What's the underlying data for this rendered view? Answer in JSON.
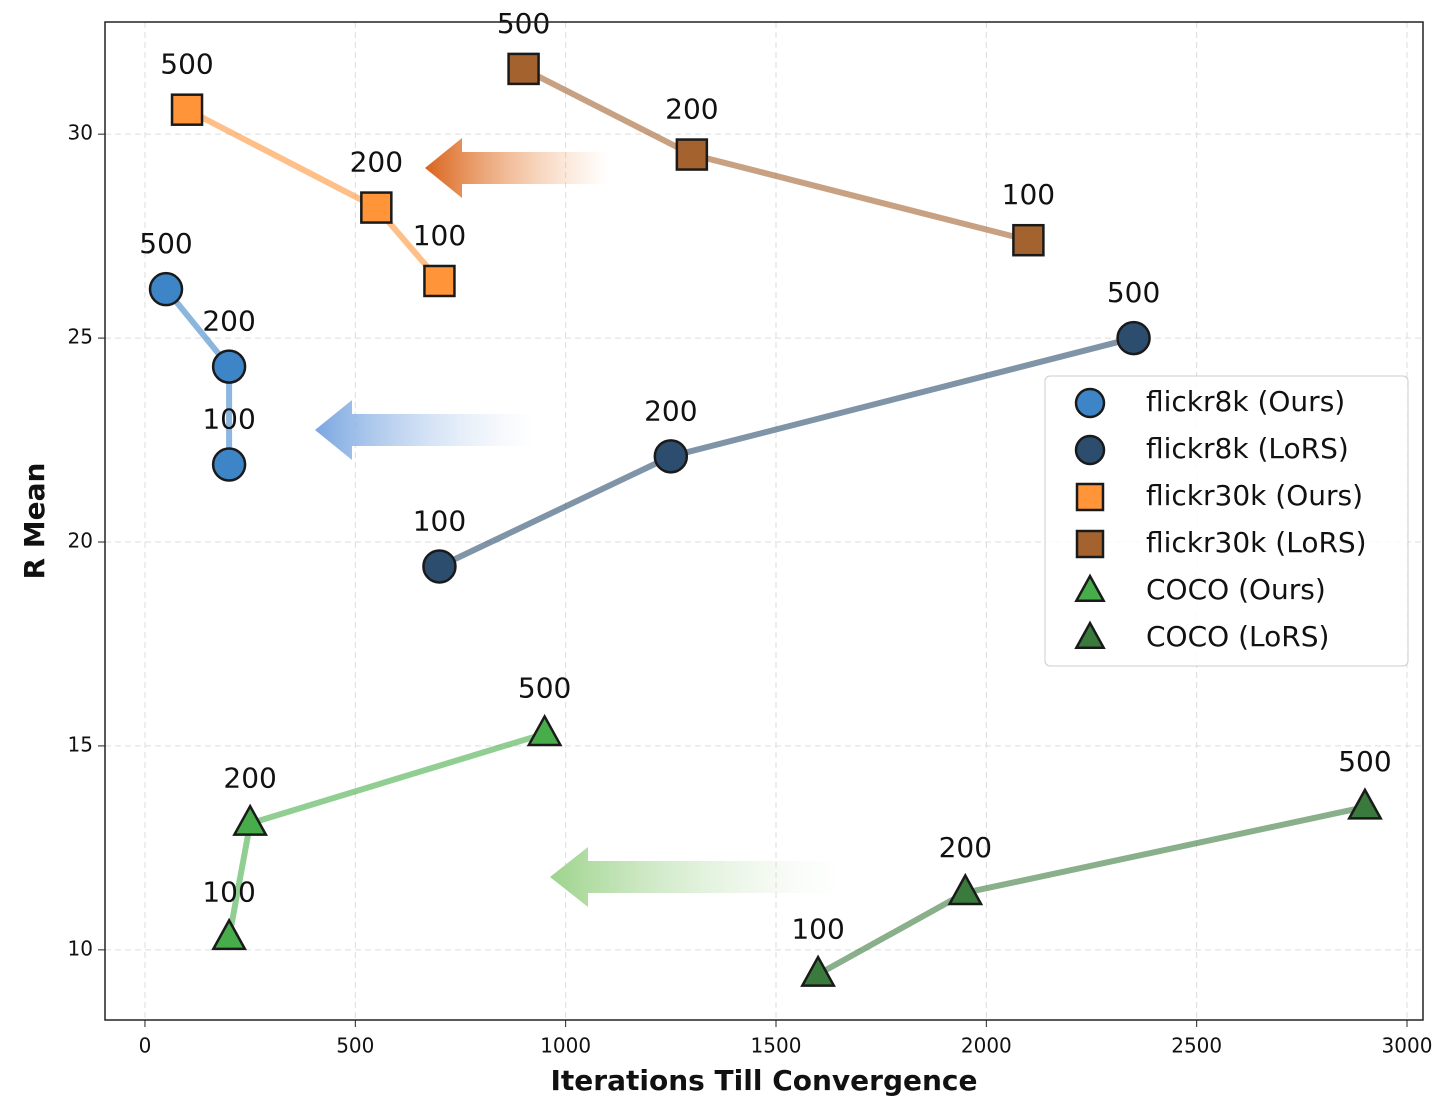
{
  "chart_data": {
    "type": "line",
    "xlabel": "Iterations Till Convergence",
    "ylabel": "R Mean",
    "xlim": [
      -95,
      3038
    ],
    "ylim": [
      8.28,
      32.75
    ],
    "xticks": [
      0,
      500,
      1000,
      1500,
      2000,
      2500,
      3000
    ],
    "yticks": [
      10,
      15,
      20,
      25,
      30
    ],
    "grid": true,
    "legend": "center right",
    "series": [
      {
        "name": "flickr8k (Ours)",
        "color": "#3d85c6",
        "marker": "circle",
        "x": [
          200,
          200,
          50
        ],
        "y": [
          21.9,
          24.3,
          26.2
        ],
        "labels": [
          "100",
          "200",
          "500"
        ]
      },
      {
        "name": "flickr8k (LoRS)",
        "color": "#2c4d6e",
        "marker": "circle",
        "x": [
          700,
          1250,
          2350
        ],
        "y": [
          19.4,
          22.1,
          25.0
        ],
        "labels": [
          "100",
          "200",
          "500"
        ]
      },
      {
        "name": "flickr30k (Ours)",
        "color": "#ff9438",
        "marker": "square",
        "x": [
          700,
          550,
          100
        ],
        "y": [
          26.4,
          28.2,
          30.6
        ],
        "labels": [
          "100",
          "200",
          "500"
        ]
      },
      {
        "name": "flickr30k (LoRS)",
        "color": "#a4622e",
        "marker": "square",
        "x": [
          2100,
          1300,
          900
        ],
        "y": [
          27.4,
          29.5,
          31.6
        ],
        "labels": [
          "100",
          "200",
          "500"
        ]
      },
      {
        "name": "COCO (Ours)",
        "color": "#47ad4a",
        "marker": "triangle",
        "x": [
          200,
          250,
          950
        ],
        "y": [
          10.3,
          13.1,
          15.3
        ],
        "labels": [
          "100",
          "200",
          "500"
        ]
      },
      {
        "name": "COCO (LoRS)",
        "color": "#3b7a3d",
        "marker": "triangle",
        "x": [
          1600,
          1950,
          2900
        ],
        "y": [
          9.4,
          11.4,
          13.5
        ],
        "labels": [
          "100",
          "200",
          "500"
        ]
      }
    ]
  }
}
